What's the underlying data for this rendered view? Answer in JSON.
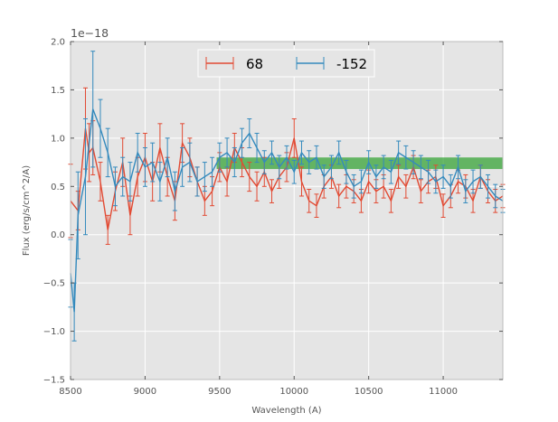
{
  "chart_data": {
    "type": "line",
    "title": "",
    "xlabel": "Wavelength (A)",
    "ylabel": "Flux (erg/s/cm^2/A)",
    "offset_text": "1e−18",
    "xlim": [
      8500,
      11400
    ],
    "ylim": [
      -1.5,
      2.0
    ],
    "x_ticks": [
      8500,
      9000,
      9500,
      10000,
      10500,
      11000
    ],
    "x_tick_labels": [
      "8500",
      "9000",
      "9500",
      "10000",
      "10500",
      "11000"
    ],
    "y_ticks": [
      -1.5,
      -1.0,
      -0.5,
      0.0,
      0.5,
      1.0,
      1.5,
      2.0
    ],
    "y_tick_labels": [
      "−1.5",
      "−1.0",
      "−0.5",
      "0.0",
      "0.5",
      "1.0",
      "1.5",
      "2.0"
    ],
    "grid": true,
    "legend_position": "top-center",
    "colors": {
      "series_68": "#E24A33",
      "series_152": "#348ABD",
      "band": "#2CA02C",
      "background": "#E5E5E5"
    },
    "band": {
      "x0": 9480,
      "x1": 11400,
      "y0": 0.68,
      "y1": 0.8
    },
    "series": [
      {
        "name": "68",
        "x": [
          8500,
          8550,
          8600,
          8625,
          8650,
          8700,
          8750,
          8800,
          8850,
          8900,
          8950,
          9000,
          9050,
          9100,
          9150,
          9200,
          9250,
          9300,
          9350,
          9400,
          9450,
          9500,
          9550,
          9600,
          9650,
          9700,
          9750,
          9800,
          9850,
          9900,
          9950,
          10000,
          10050,
          10100,
          10150,
          10200,
          10250,
          10300,
          10350,
          10400,
          10450,
          10500,
          10550,
          10600,
          10650,
          10700,
          10750,
          10800,
          10850,
          10900,
          10950,
          11000,
          11050,
          11100,
          11150,
          11200,
          11250,
          11300,
          11350,
          11400
        ],
        "y": [
          0.35,
          0.25,
          1.1,
          0.85,
          0.9,
          0.55,
          0.05,
          0.45,
          0.75,
          0.2,
          0.6,
          0.8,
          0.55,
          0.9,
          0.6,
          0.35,
          0.95,
          0.8,
          0.55,
          0.35,
          0.45,
          0.7,
          0.55,
          0.9,
          0.75,
          0.6,
          0.5,
          0.65,
          0.45,
          0.6,
          0.7,
          1.0,
          0.55,
          0.35,
          0.3,
          0.5,
          0.6,
          0.4,
          0.5,
          0.45,
          0.35,
          0.55,
          0.45,
          0.5,
          0.35,
          0.6,
          0.5,
          0.7,
          0.45,
          0.55,
          0.6,
          0.3,
          0.4,
          0.55,
          0.5,
          0.35,
          0.6,
          0.45,
          0.35,
          0.4
        ],
        "err": [
          0.38,
          0.2,
          0.42,
          0.3,
          0.28,
          0.2,
          0.15,
          0.2,
          0.25,
          0.2,
          0.2,
          0.25,
          0.2,
          0.25,
          0.2,
          0.2,
          0.2,
          0.2,
          0.15,
          0.15,
          0.15,
          0.15,
          0.15,
          0.15,
          0.15,
          0.15,
          0.15,
          0.15,
          0.12,
          0.12,
          0.15,
          0.2,
          0.15,
          0.12,
          0.12,
          0.12,
          0.12,
          0.12,
          0.12,
          0.12,
          0.12,
          0.12,
          0.12,
          0.12,
          0.12,
          0.12,
          0.12,
          0.12,
          0.12,
          0.12,
          0.12,
          0.12,
          0.12,
          0.12,
          0.12,
          0.12,
          0.12,
          0.12,
          0.12,
          0.12
        ]
      },
      {
        "name": "-152",
        "x": [
          8500,
          8525,
          8550,
          8600,
          8650,
          8700,
          8750,
          8800,
          8850,
          8900,
          8950,
          9000,
          9050,
          9100,
          9150,
          9200,
          9250,
          9300,
          9350,
          9400,
          9450,
          9500,
          9550,
          9600,
          9650,
          9700,
          9750,
          9800,
          9850,
          9900,
          9950,
          10000,
          10050,
          10100,
          10150,
          10200,
          10250,
          10300,
          10350,
          10400,
          10450,
          10500,
          10550,
          10600,
          10650,
          10700,
          10750,
          10800,
          10850,
          10900,
          10950,
          11000,
          11050,
          11100,
          11150,
          11200,
          11250,
          11300,
          11350,
          11400
        ],
        "y": [
          -0.4,
          -0.8,
          0.2,
          0.6,
          1.3,
          1.1,
          0.85,
          0.5,
          0.6,
          0.55,
          0.85,
          0.7,
          0.75,
          0.55,
          0.8,
          0.45,
          0.7,
          0.75,
          0.55,
          0.6,
          0.65,
          0.8,
          0.85,
          0.75,
          0.95,
          1.05,
          0.9,
          0.75,
          0.85,
          0.7,
          0.8,
          0.65,
          0.85,
          0.75,
          0.8,
          0.6,
          0.7,
          0.85,
          0.65,
          0.5,
          0.55,
          0.75,
          0.6,
          0.7,
          0.65,
          0.85,
          0.8,
          0.75,
          0.7,
          0.65,
          0.55,
          0.6,
          0.5,
          0.7,
          0.45,
          0.55,
          0.6,
          0.5,
          0.4,
          0.35
        ],
        "err": [
          0.35,
          0.3,
          0.45,
          0.6,
          0.6,
          0.3,
          0.25,
          0.2,
          0.2,
          0.2,
          0.2,
          0.2,
          0.2,
          0.2,
          0.2,
          0.2,
          0.2,
          0.2,
          0.15,
          0.15,
          0.15,
          0.15,
          0.15,
          0.15,
          0.15,
          0.15,
          0.15,
          0.12,
          0.12,
          0.12,
          0.12,
          0.12,
          0.12,
          0.12,
          0.12,
          0.12,
          0.12,
          0.12,
          0.12,
          0.12,
          0.12,
          0.12,
          0.12,
          0.12,
          0.12,
          0.12,
          0.12,
          0.12,
          0.12,
          0.12,
          0.12,
          0.12,
          0.12,
          0.12,
          0.12,
          0.12,
          0.12,
          0.12,
          0.12,
          0.12
        ]
      }
    ]
  }
}
